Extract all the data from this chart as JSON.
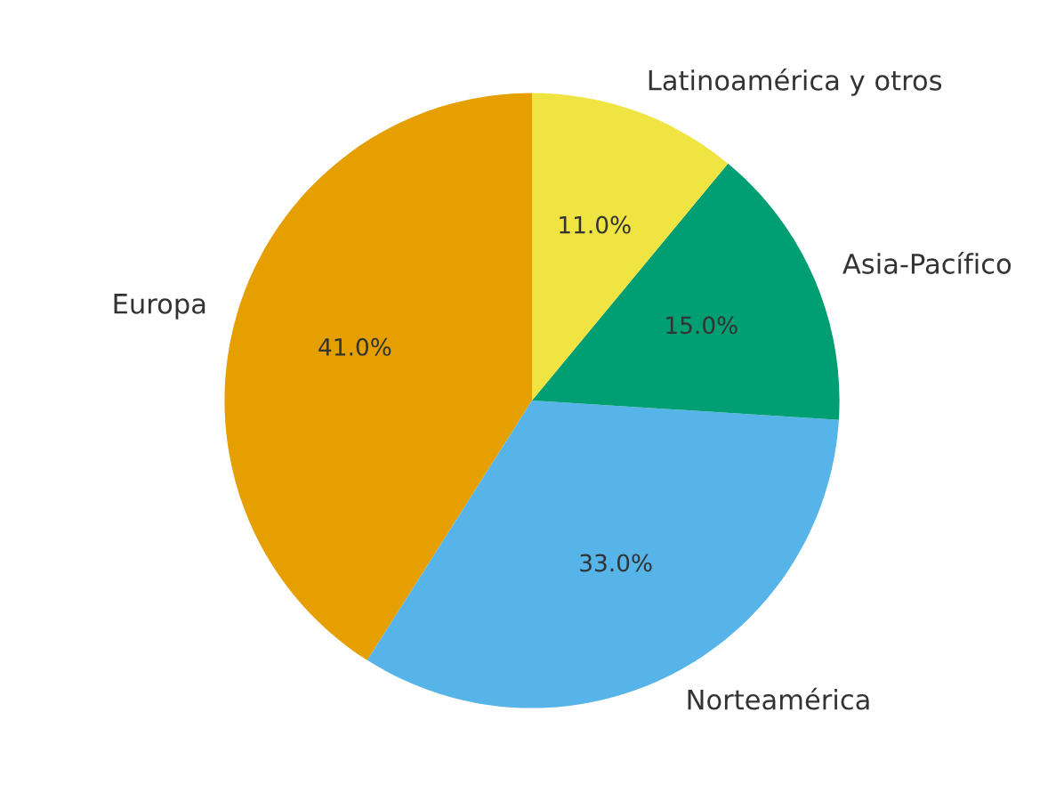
{
  "chart_data": {
    "type": "pie",
    "categories": [
      "Europa",
      "Norteamérica",
      "Asia-Pacífico",
      "Latinoamérica y otros"
    ],
    "values": [
      41,
      33,
      15,
      11
    ],
    "colors": [
      "#e69f00",
      "#56b4e9",
      "#009e73",
      "#f0e442"
    ],
    "value_labels": [
      "41.0%",
      "33.0%",
      "15.0%",
      "11.0%"
    ]
  }
}
